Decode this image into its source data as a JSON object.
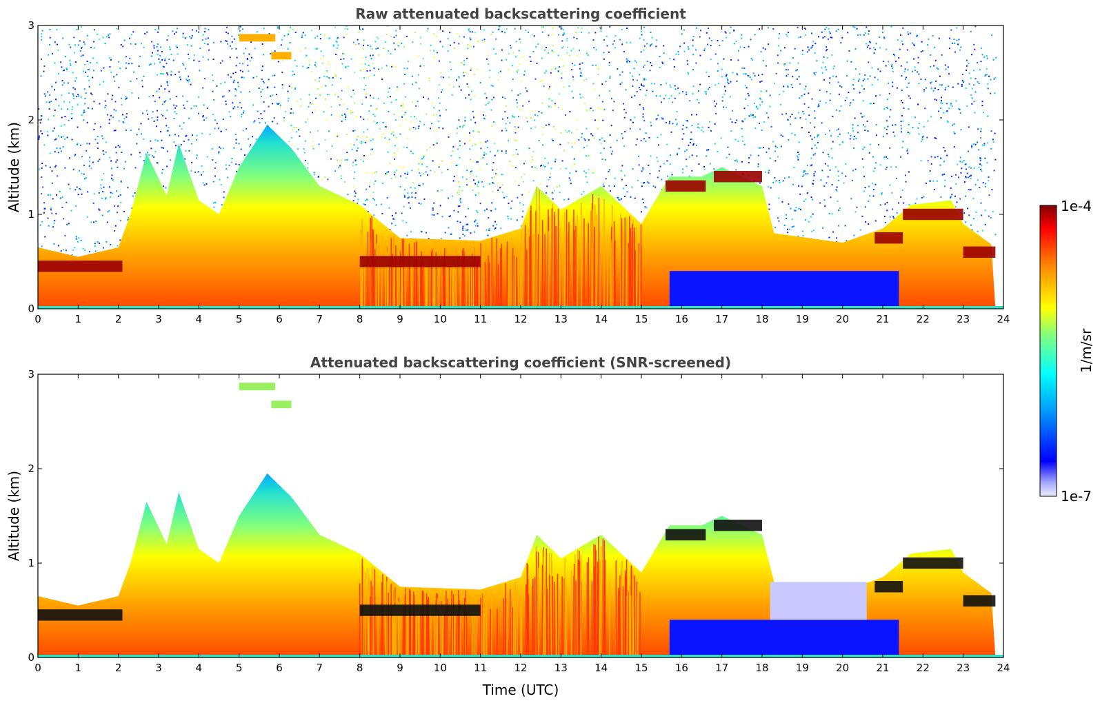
{
  "chart_data": [
    {
      "type": "heatmap",
      "title": "Raw attenuated backscattering coefficient",
      "xlabel": "",
      "ylabel": "Altitude (km)",
      "xlim": [
        0,
        24
      ],
      "ylim": [
        0,
        3
      ],
      "x_ticks": [
        "0",
        "1",
        "2",
        "3",
        "4",
        "5",
        "6",
        "7",
        "8",
        "9",
        "10",
        "11",
        "12",
        "13",
        "14",
        "15",
        "16",
        "17",
        "18",
        "19",
        "20",
        "21",
        "22",
        "23",
        "24"
      ],
      "y_ticks": [
        "0",
        "1",
        "2",
        "3"
      ],
      "noise_above_boundary_layer": true,
      "boundary_layer_top_km": [
        [
          0,
          0.65
        ],
        [
          1,
          0.55
        ],
        [
          2,
          0.65
        ],
        [
          2.3,
          1.0
        ],
        [
          2.7,
          1.65
        ],
        [
          3.2,
          1.2
        ],
        [
          3.5,
          1.75
        ],
        [
          4,
          1.15
        ],
        [
          4.5,
          1.0
        ],
        [
          5,
          1.5
        ],
        [
          5.7,
          1.95
        ],
        [
          6.3,
          1.7
        ],
        [
          7,
          1.3
        ],
        [
          8,
          1.1
        ],
        [
          9,
          0.75
        ],
        [
          11,
          0.72
        ],
        [
          12,
          0.85
        ],
        [
          12.4,
          1.3
        ],
        [
          13,
          1.05
        ],
        [
          14,
          1.3
        ],
        [
          15,
          0.9
        ],
        [
          15.7,
          1.4
        ],
        [
          16.5,
          1.4
        ],
        [
          17,
          1.5
        ],
        [
          18,
          1.3
        ],
        [
          18.3,
          0.8
        ],
        [
          20,
          0.7
        ],
        [
          21,
          0.85
        ],
        [
          21.7,
          1.1
        ],
        [
          22.7,
          1.15
        ],
        [
          23,
          0.9
        ],
        [
          23.8,
          0.65
        ]
      ],
      "cloud_layers": [
        {
          "x_start": 0.0,
          "x_end": 2.1,
          "altitude_km": 0.45
        },
        {
          "x_start": 8.0,
          "x_end": 11.0,
          "altitude_km": 0.5
        },
        {
          "x_start": 15.6,
          "x_end": 16.6,
          "altitude_km": 1.3
        },
        {
          "x_start": 16.8,
          "x_end": 18.0,
          "altitude_km": 1.4
        },
        {
          "x_start": 20.8,
          "x_end": 21.5,
          "altitude_km": 0.75
        },
        {
          "x_start": 21.5,
          "x_end": 23.0,
          "altitude_km": 1.0
        },
        {
          "x_start": 23.0,
          "x_end": 23.8,
          "altitude_km": 0.6
        }
      ],
      "elevated_layers": [
        {
          "x_start": 5.0,
          "x_end": 5.9,
          "altitude_km": 2.87
        },
        {
          "x_start": 5.8,
          "x_end": 6.3,
          "altitude_km": 2.68
        }
      ],
      "colormap": {
        "name": "jet",
        "vmin": "1e-7",
        "vmax": "1e-4",
        "scale": "log"
      }
    },
    {
      "type": "heatmap",
      "title": "Attenuated backscattering coefficient (SNR-screened)",
      "xlabel": "Time (UTC)",
      "ylabel": "Altitude (km)",
      "xlim": [
        0,
        24
      ],
      "ylim": [
        0,
        3
      ],
      "x_ticks": [
        "0",
        "1",
        "2",
        "3",
        "4",
        "5",
        "6",
        "7",
        "8",
        "9",
        "10",
        "11",
        "12",
        "13",
        "14",
        "15",
        "16",
        "17",
        "18",
        "19",
        "20",
        "21",
        "22",
        "23",
        "24"
      ],
      "y_ticks": [
        "0",
        "1",
        "2",
        "3"
      ],
      "noise_above_boundary_layer": false,
      "low_signal_region": {
        "x_start": 18.2,
        "x_end": 20.6,
        "top_km": 0.8
      },
      "cloud_layers_masked_black": true
    }
  ],
  "colorbar": {
    "label": "1/m/sr",
    "max_label": "1e-4",
    "min_label": "1e-7"
  }
}
